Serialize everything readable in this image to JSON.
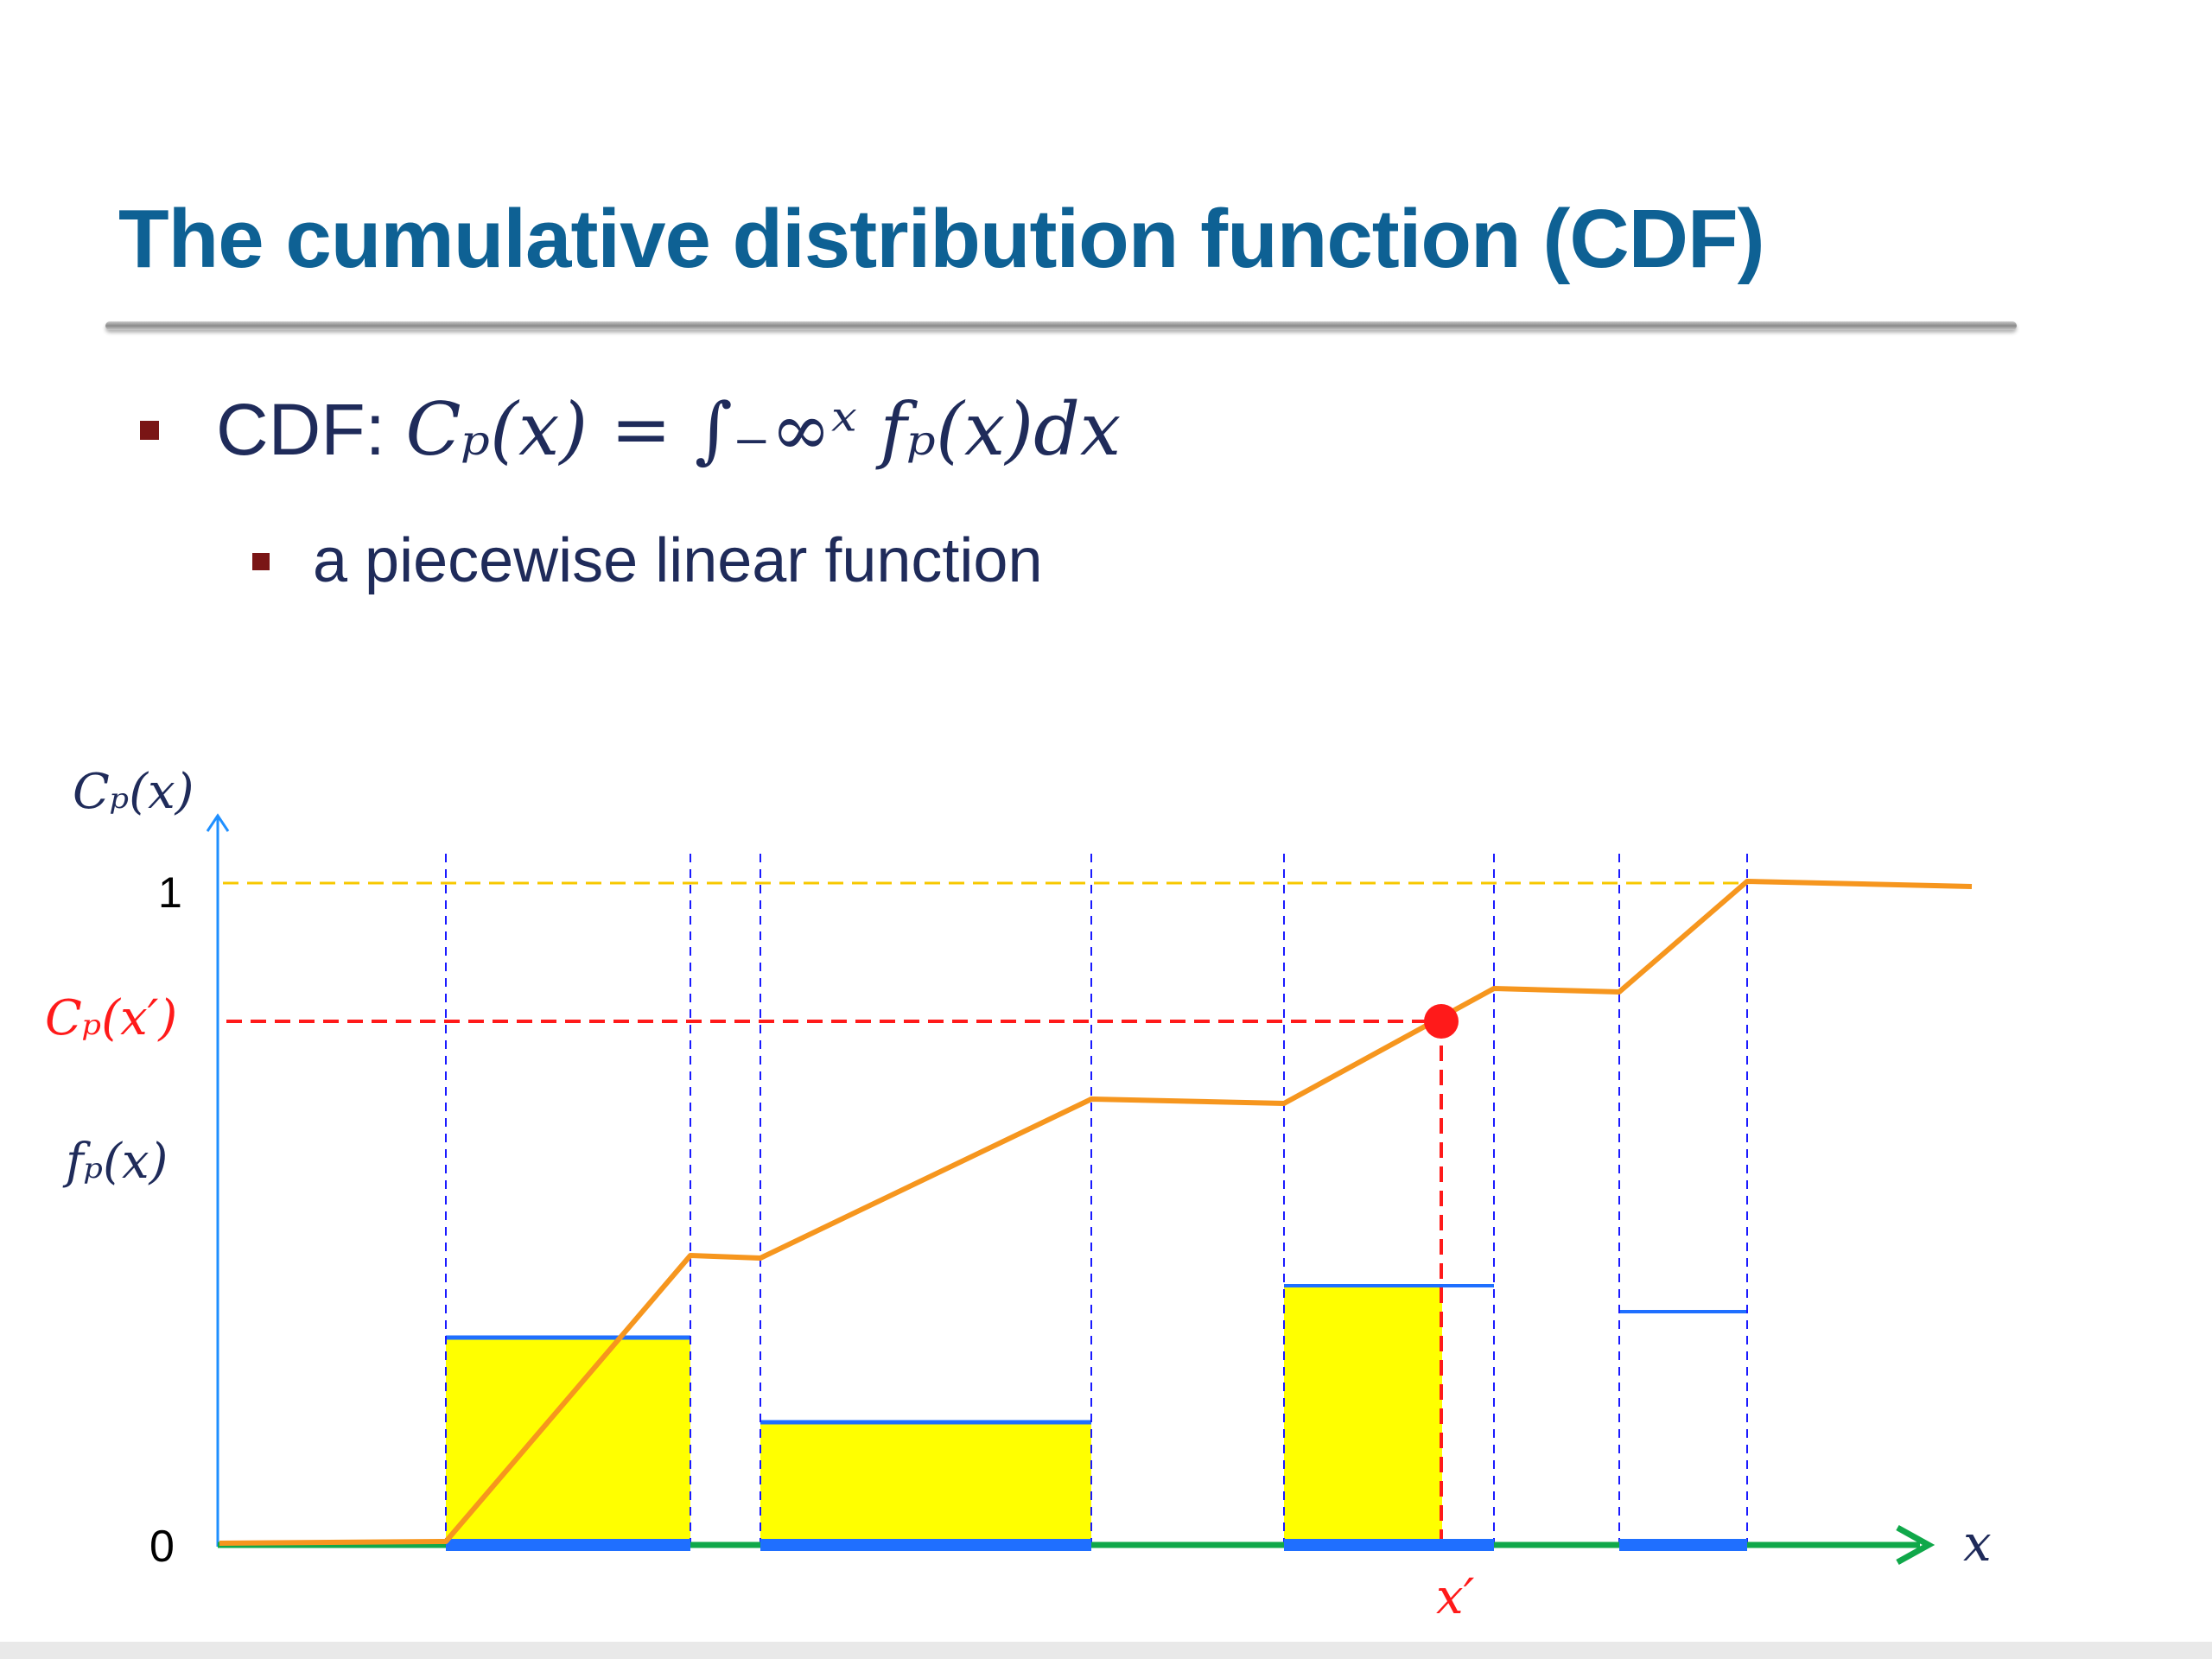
{
  "slide": {
    "title": "The cumulative distribution function (CDF)",
    "bullet1_prefix": "CDF: ",
    "bullet1_formula": "Cₚ(x) = ∫₋∞ˣ fₚ(x)dx",
    "bullet2": "a piecewise linear function"
  },
  "diagram": {
    "y_axis_label": "Cₚ(x)",
    "y_tick_one": "1",
    "y_tick_cx": "Cₚ(x′)",
    "y_tick_fx": "fₚ(x)",
    "y_tick_zero": "0",
    "x_axis_label": "x",
    "x_marker_label": "x′",
    "colors": {
      "cdf_line": "#f6961e",
      "pdf_fill": "#ffff00",
      "pdf_outline": "#1f6fff",
      "x_axis": "#10a84a",
      "y_axis": "#1f8fff",
      "guide_red": "#ff1a1a",
      "guide_yellow": "#f7c800",
      "guide_blue": "#1a1aff"
    }
  }
}
